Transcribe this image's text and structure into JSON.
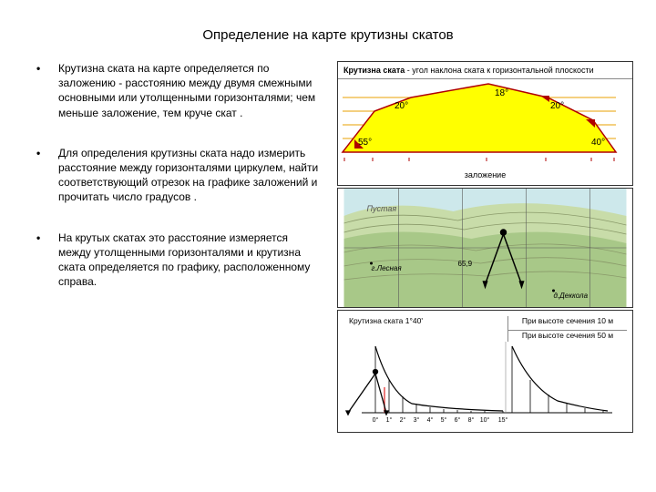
{
  "title": "Определение на карте крутизны скатов",
  "bullets": [
    "Крутизна ската на карте определяется по заложению - расстоянию между двумя смежными основными или утолщенными горизонталями; чем меньше заложение, тем круче скат .",
    "Для определения крутизны ската надо измерить расстояние между горизонталями циркулем, найти соответствующий отрезок на графике заложений и прочитать число градусов .",
    "На крутых скатах это расстояние измеряется между утолщенными горизонталями и крутизна ската определяется по графику, расположенному справа."
  ],
  "fig1": {
    "header_bold": "Крутизна ската",
    "header_rest": " - угол наклона ската к горизонтальной плоскости",
    "angle_labels": [
      "55°",
      "20°",
      "18°",
      "20°",
      "40°"
    ],
    "footer": "заложение",
    "slope_fill": "#ffff00",
    "slope_border": "#b00000",
    "grid_color": "#e8a000"
  },
  "fig2": {
    "water_color": "#cde8eb",
    "land_color1": "#c8dca9",
    "land_color2": "#a8c888",
    "contour_color": "#8a9a6a",
    "grid_color": "#5a5a5a",
    "label1": "г.Лесная",
    "label2": "д.Деккола",
    "value": "65,9",
    "compass_color": "#000000"
  },
  "fig3": {
    "title_left": "Крутизна ската 1°40'",
    "title_right1": "При высоте сечения 10 м",
    "title_right2": "При высоте сечения 50 м",
    "x_labels": [
      "0°",
      "1°",
      "2°",
      "3°",
      "4°",
      "5°",
      "6°",
      "8°",
      "10°",
      "15°",
      "20°"
    ],
    "curve_color": "#000000",
    "red_color": "#e02020",
    "compass_color": "#000000"
  }
}
